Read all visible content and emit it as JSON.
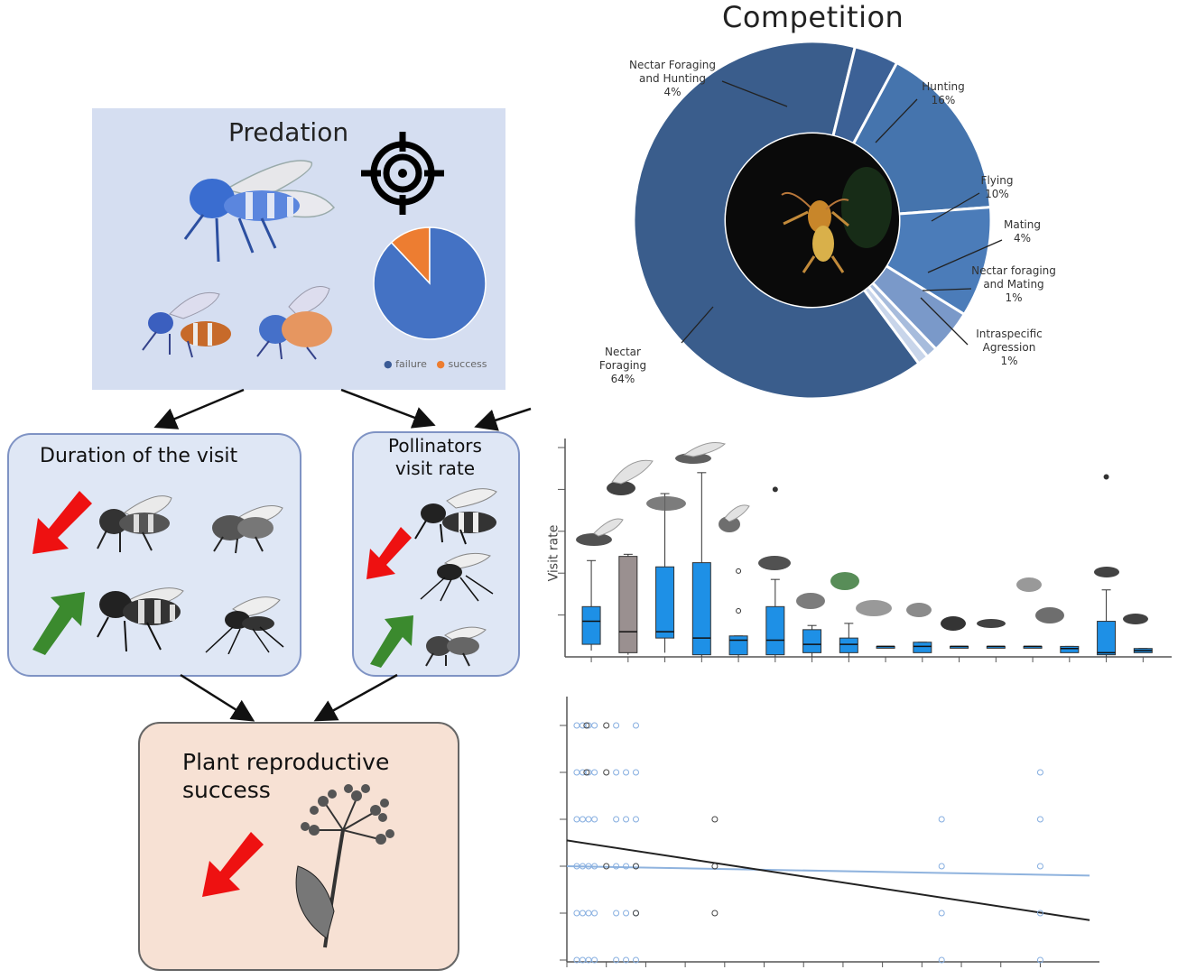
{
  "competition": {
    "title": "Competition",
    "chart_data": {
      "type": "pie",
      "categories": [
        "Nectar Foraging",
        "Nectar Foraging and Hunting",
        "Hunting",
        "Flying",
        "Mating",
        "Nectar foraging and Mating",
        "Intraspecific Agression"
      ],
      "values": [
        64,
        4,
        16,
        10,
        4,
        1,
        1
      ],
      "colors": [
        "#3a5d8c",
        "#3c6196",
        "#4574ad",
        "#4b7cb9",
        "#7a99c9",
        "#a7bcdc",
        "#c8d5ea"
      ],
      "labels": [
        {
          "name": "Nectar Foraging",
          "pct": "64%"
        },
        {
          "name_line1": "Nectar Foraging",
          "name_line2": "and Hunting",
          "pct": "4%"
        },
        {
          "name": "Hunting",
          "pct": "16%"
        },
        {
          "name": "Flying",
          "pct": "10%"
        },
        {
          "name": "Mating",
          "pct": "4%"
        },
        {
          "name_line1": "Nectar foraging",
          "name_line2": "and Mating",
          "pct": "1%"
        },
        {
          "name_line1": "Intraspecific",
          "name_line2": "Agression",
          "pct": "1%"
        }
      ]
    }
  },
  "predation": {
    "title": "Predation",
    "chart_data": {
      "type": "pie",
      "categories": [
        "failure",
        "success"
      ],
      "values": [
        88,
        12
      ],
      "colors": [
        "#4472c4",
        "#ed7d31"
      ]
    },
    "legend": [
      "failure",
      "success"
    ]
  },
  "duration": {
    "title": "Duration of the visit"
  },
  "visit_rate_box": {
    "title_line1": "Pollinators",
    "title_line2": "visit rate"
  },
  "plant": {
    "title_line1": "Plant reproductive",
    "title_line2": "success"
  },
  "boxplot": {
    "ylabel": "Visit rate",
    "chart_data": {
      "type": "box",
      "ylabel": "Visit rate",
      "ylim": [
        0,
        5
      ],
      "boxes": [
        {
          "q1": 0.3,
          "median": 0.85,
          "q3": 1.2,
          "low": 0.15,
          "high": 2.3,
          "color": "#1e90e6"
        },
        {
          "q1": 0.1,
          "median": 0.6,
          "q3": 2.4,
          "low": 0.05,
          "high": 2.45,
          "color": "#9a9090"
        },
        {
          "q1": 0.45,
          "median": 0.6,
          "q3": 2.15,
          "low": 0.1,
          "high": 3.9,
          "color": "#1e90e6"
        },
        {
          "q1": 0.05,
          "median": 0.45,
          "q3": 2.25,
          "low": 0.0,
          "high": 4.4,
          "color": "#1e90e6"
        },
        {
          "q1": 0.05,
          "median": 0.4,
          "q3": 0.5,
          "low": 0.0,
          "high": 0.5,
          "color": "#1e90e6",
          "outliers": [
            1.1,
            2.05
          ]
        },
        {
          "q1": 0.05,
          "median": 0.4,
          "q3": 1.2,
          "low": 0.0,
          "high": 1.85,
          "color": "#1e90e6",
          "outliers": [
            4.0
          ]
        },
        {
          "q1": 0.1,
          "median": 0.3,
          "q3": 0.65,
          "low": 0.0,
          "high": 0.75,
          "color": "#1e90e6"
        },
        {
          "q1": 0.1,
          "median": 0.3,
          "q3": 0.45,
          "low": 0.0,
          "high": 0.8,
          "color": "#1e90e6"
        },
        {
          "q1": 0.25,
          "median": 0.25,
          "q3": 0.25,
          "low": 0.25,
          "high": 0.25,
          "color": "#1e90e6"
        },
        {
          "q1": 0.1,
          "median": 0.25,
          "q3": 0.35,
          "low": 0.1,
          "high": 0.35,
          "color": "#1e90e6"
        },
        {
          "q1": 0.25,
          "median": 0.25,
          "q3": 0.25,
          "low": 0.25,
          "high": 0.25,
          "color": "#1e90e6"
        },
        {
          "q1": 0.25,
          "median": 0.25,
          "q3": 0.25,
          "low": 0.25,
          "high": 0.25,
          "color": "#1e90e6"
        },
        {
          "q1": 0.25,
          "median": 0.25,
          "q3": 0.25,
          "low": 0.25,
          "high": 0.25,
          "color": "#1e90e6"
        },
        {
          "q1": 0.1,
          "median": 0.2,
          "q3": 0.25,
          "low": 0.1,
          "high": 0.25,
          "color": "#1e90e6"
        },
        {
          "q1": 0.05,
          "median": 0.1,
          "q3": 0.85,
          "low": 0.0,
          "high": 1.6,
          "color": "#1e90e6",
          "outliers": [
            4.3
          ]
        },
        {
          "q1": 0.1,
          "median": 0.15,
          "q3": 0.2,
          "low": 0.1,
          "high": 0.2,
          "color": "#1e90e6"
        }
      ]
    }
  },
  "scatter": {
    "chart_data": {
      "type": "scatter",
      "xlim": [
        0,
        27
      ],
      "ylim": [
        0,
        5
      ],
      "points_blue": [
        [
          0.5,
          5
        ],
        [
          0.8,
          5
        ],
        [
          1.1,
          5
        ],
        [
          1.4,
          5
        ],
        [
          2.5,
          5
        ],
        [
          3.5,
          5
        ],
        [
          0.5,
          4
        ],
        [
          0.8,
          4
        ],
        [
          1.1,
          4
        ],
        [
          1.4,
          4
        ],
        [
          2.5,
          4
        ],
        [
          3.0,
          4
        ],
        [
          3.5,
          4
        ],
        [
          24.0,
          4
        ],
        [
          0.5,
          3
        ],
        [
          0.8,
          3
        ],
        [
          1.1,
          3
        ],
        [
          1.4,
          3
        ],
        [
          2.5,
          3
        ],
        [
          3.0,
          3
        ],
        [
          3.5,
          3
        ],
        [
          19.0,
          3
        ],
        [
          24.0,
          3
        ],
        [
          0.5,
          2
        ],
        [
          0.8,
          2
        ],
        [
          1.1,
          2
        ],
        [
          1.4,
          2
        ],
        [
          2.5,
          2
        ],
        [
          3.0,
          2
        ],
        [
          3.5,
          2
        ],
        [
          19.0,
          2
        ],
        [
          24.0,
          2
        ],
        [
          0.5,
          1
        ],
        [
          0.8,
          1
        ],
        [
          1.1,
          1
        ],
        [
          1.4,
          1
        ],
        [
          2.5,
          1
        ],
        [
          3.0,
          1
        ],
        [
          3.5,
          1
        ],
        [
          19.0,
          1
        ],
        [
          24.0,
          1
        ],
        [
          0.5,
          0
        ],
        [
          0.8,
          0
        ],
        [
          1.1,
          0
        ],
        [
          1.4,
          0
        ],
        [
          2.5,
          0
        ],
        [
          3.0,
          0
        ],
        [
          3.5,
          0
        ],
        [
          19.0,
          0
        ],
        [
          24.0,
          0
        ]
      ],
      "points_dark": [
        [
          1.0,
          5
        ],
        [
          2.0,
          5
        ],
        [
          1.0,
          4
        ],
        [
          2.0,
          4
        ],
        [
          7.5,
          3
        ],
        [
          7.5,
          2
        ],
        [
          3.5,
          1
        ],
        [
          7.5,
          1
        ],
        [
          2.0,
          2
        ],
        [
          3.5,
          2
        ]
      ],
      "line_black": {
        "x0": 0,
        "y0": 2.55,
        "x1": 26.5,
        "y1": 0.85
      },
      "line_blue": {
        "x0": 0,
        "y0": 2.0,
        "x1": 26.5,
        "y1": 1.8
      }
    }
  }
}
